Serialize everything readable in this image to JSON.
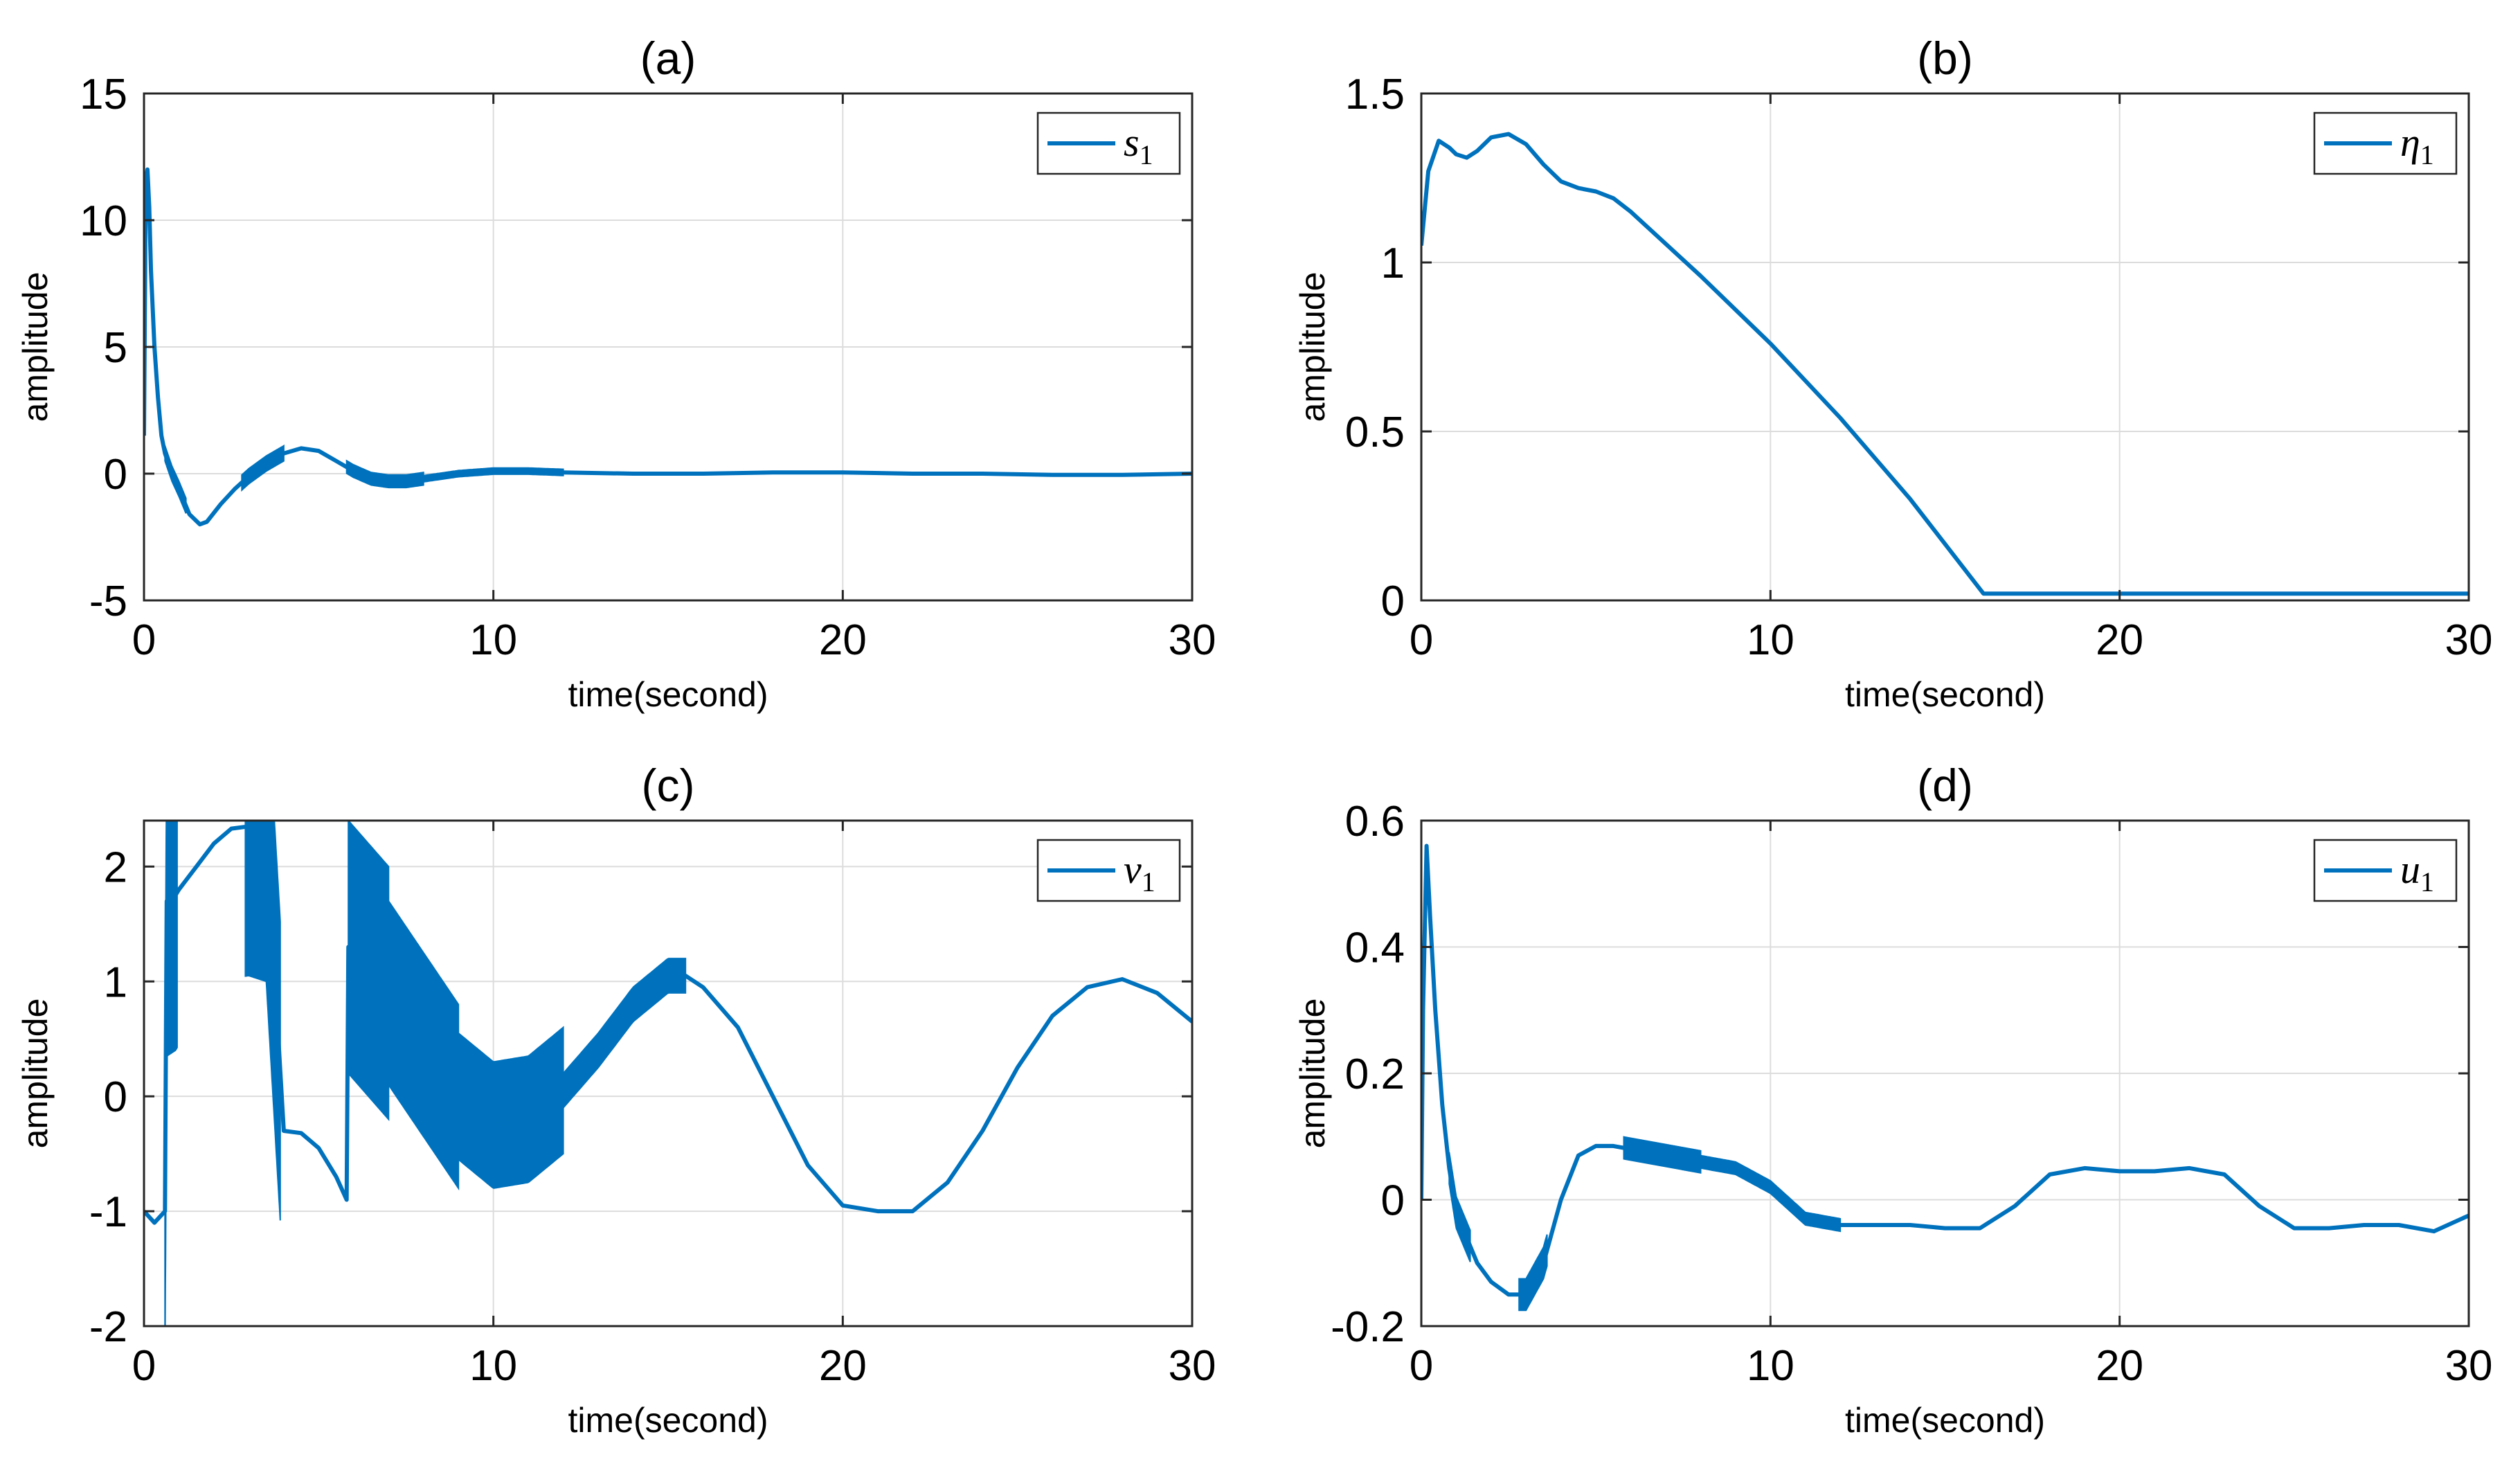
{
  "chart_data": [
    {
      "type": "line",
      "title": "(a)",
      "xlabel": "time(second)",
      "ylabel": "amplitude",
      "xlim": [
        0,
        30
      ],
      "ylim": [
        -5,
        15
      ],
      "xticks": [
        0,
        10,
        20,
        30
      ],
      "xtick_labels": [
        "0",
        "10",
        "20",
        "30"
      ],
      "yticks": [
        -5,
        0,
        5,
        10,
        15
      ],
      "ytick_labels": [
        "-5",
        "0",
        "5",
        "10",
        "15"
      ],
      "grid": true,
      "legend": {
        "label": "s",
        "subscript": "1",
        "position": "top-right"
      },
      "color": "#0072BD",
      "series": [
        {
          "name": "s1",
          "x": [
            0,
            0.05,
            0.1,
            0.15,
            0.2,
            0.3,
            0.4,
            0.5,
            0.6,
            0.8,
            1.0,
            1.3,
            1.6,
            1.8,
            2.2,
            2.6,
            3.0,
            3.5,
            4.0,
            4.5,
            5.0,
            5.5,
            6.0,
            6.5,
            7.0,
            7.5,
            8.0,
            9.0,
            10.0,
            11.0,
            12.0,
            14.0,
            16.0,
            18.0,
            20.0,
            22.0,
            24.0,
            26.0,
            28.0,
            30.0
          ],
          "y": [
            1.5,
            11.5,
            12.0,
            10.5,
            8.0,
            5.0,
            3.0,
            1.5,
            0.8,
            0.0,
            -0.6,
            -1.6,
            -2.0,
            -1.9,
            -1.2,
            -0.6,
            -0.1,
            0.4,
            0.8,
            1.0,
            0.9,
            0.5,
            0.1,
            -0.2,
            -0.3,
            -0.3,
            -0.2,
            0.0,
            0.1,
            0.1,
            0.05,
            0.0,
            0.0,
            0.05,
            0.05,
            0.0,
            0.0,
            -0.05,
            -0.05,
            0.0
          ],
          "oscillation_bands": [
            [
              0.6,
              1.2,
              0.6
            ],
            [
              2.8,
              4.0,
              0.6
            ],
            [
              5.8,
              8.0,
              0.5
            ],
            [
              8.0,
              12.0,
              0.25
            ]
          ]
        }
      ]
    },
    {
      "type": "line",
      "title": "(b)",
      "xlabel": "time(second)",
      "ylabel": "amplitude",
      "xlim": [
        0,
        30
      ],
      "ylim": [
        0,
        1.5
      ],
      "xticks": [
        0,
        10,
        20,
        30
      ],
      "xtick_labels": [
        "0",
        "10",
        "20",
        "30"
      ],
      "yticks": [
        0,
        0.5,
        1,
        1.5
      ],
      "ytick_labels": [
        "0",
        "0.5",
        "1",
        "1.5"
      ],
      "grid": true,
      "legend": {
        "label": "η",
        "subscript": "1",
        "position": "top-right"
      },
      "color": "#0072BD",
      "series": [
        {
          "name": "eta1",
          "x": [
            0,
            0.2,
            0.5,
            0.8,
            1.0,
            1.3,
            1.6,
            2.0,
            2.5,
            3.0,
            3.5,
            4.0,
            4.5,
            5.0,
            5.5,
            6.0,
            8.0,
            10.0,
            12.0,
            14.0,
            16.1,
            18.0,
            20.0,
            25.0,
            30.0
          ],
          "y": [
            1.05,
            1.27,
            1.36,
            1.34,
            1.32,
            1.31,
            1.33,
            1.37,
            1.38,
            1.35,
            1.29,
            1.24,
            1.22,
            1.21,
            1.19,
            1.15,
            0.96,
            0.76,
            0.54,
            0.3,
            0.02,
            0.02,
            0.02,
            0.02,
            0.02
          ],
          "oscillation_bands": []
        }
      ]
    },
    {
      "type": "line",
      "title": "(c)",
      "xlabel": "time(second)",
      "ylabel": "amplitude",
      "xlim": [
        0,
        30
      ],
      "ylim": [
        -2,
        2.4
      ],
      "xticks": [
        0,
        10,
        20,
        30
      ],
      "xtick_labels": [
        "0",
        "10",
        "20",
        "30"
      ],
      "yticks": [
        -2,
        -1,
        0,
        1,
        2
      ],
      "ytick_labels": [
        "-2",
        "-1",
        "0",
        "1",
        "2"
      ],
      "grid": true,
      "legend": {
        "label": "v",
        "subscript": "1",
        "position": "top-right"
      },
      "color": "#0072BD",
      "series": [
        {
          "name": "v1",
          "x": [
            0,
            0.3,
            0.6,
            0.65,
            0.9,
            1.0,
            1.5,
            2.0,
            2.5,
            3.0,
            3.5,
            4.0,
            4.5,
            5.0,
            5.5,
            5.8,
            5.85,
            7.0,
            8.0,
            9.0,
            10.0,
            11.0,
            12.0,
            13.0,
            14.0,
            15.0,
            15.5,
            16.0,
            17.0,
            18.0,
            19.0,
            20.0,
            21.0,
            22.0,
            23.0,
            24.0,
            25.0,
            26.0,
            27.0,
            28.0,
            29.0,
            30.0
          ],
          "y": [
            -1.0,
            -1.1,
            -1.0,
            1.7,
            1.75,
            1.8,
            2.0,
            2.2,
            2.33,
            2.35,
            2.3,
            -0.3,
            -0.32,
            -0.45,
            -0.7,
            -0.9,
            1.3,
            0.9,
            0.45,
            0.0,
            -0.25,
            -0.2,
            0.05,
            0.4,
            0.8,
            1.05,
            1.05,
            0.95,
            0.6,
            0.0,
            -0.6,
            -0.95,
            -1.0,
            -1.0,
            -0.75,
            -0.3,
            0.25,
            0.7,
            0.95,
            1.02,
            0.9,
            0.65
          ],
          "oscillation_bands": [
            [
              0.6,
              0.95,
              2.7
            ],
            [
              2.9,
              3.9,
              2.6
            ],
            [
              5.85,
              7.0,
              2.2
            ],
            [
              7.0,
              9.0,
              1.6
            ],
            [
              9.0,
              12.0,
              1.1
            ],
            [
              12.0,
              15.5,
              0.3
            ]
          ]
        }
      ]
    },
    {
      "type": "line",
      "title": "(d)",
      "xlabel": "time(second)",
      "ylabel": "amplitude",
      "xlim": [
        0,
        30
      ],
      "ylim": [
        -0.2,
        0.6
      ],
      "xticks": [
        0,
        10,
        20,
        30
      ],
      "xtick_labels": [
        "0",
        "10",
        "20",
        "30"
      ],
      "yticks": [
        -0.2,
        0,
        0.2,
        0.4,
        0.6
      ],
      "ytick_labels": [
        "-0.2",
        "0",
        "0.2",
        "0.4",
        "0.6"
      ],
      "grid": true,
      "legend": {
        "label": "u",
        "subscript": "1",
        "position": "top-right"
      },
      "color": "#0072BD",
      "series": [
        {
          "name": "u1",
          "x": [
            0,
            0.05,
            0.15,
            0.25,
            0.4,
            0.6,
            0.8,
            1.0,
            1.3,
            1.6,
            2.0,
            2.5,
            3.0,
            3.5,
            4.0,
            4.5,
            5.0,
            5.5,
            6.0,
            7.0,
            8.0,
            9.0,
            10.0,
            11.0,
            12.0,
            13.0,
            14.0,
            15.0,
            16.0,
            17.0,
            18.0,
            19.0,
            20.0,
            21.0,
            22.0,
            23.0,
            24.0,
            25.0,
            26.0,
            27.0,
            28.0,
            29.0,
            30.0
          ],
          "y": [
            0.0,
            0.3,
            0.56,
            0.45,
            0.3,
            0.15,
            0.05,
            -0.02,
            -0.06,
            -0.1,
            -0.13,
            -0.15,
            -0.15,
            -0.1,
            0.0,
            0.07,
            0.085,
            0.085,
            0.08,
            0.07,
            0.06,
            0.05,
            0.02,
            -0.03,
            -0.04,
            -0.04,
            -0.04,
            -0.045,
            -0.045,
            -0.01,
            0.04,
            0.05,
            0.045,
            0.045,
            0.05,
            0.04,
            -0.01,
            -0.045,
            -0.045,
            -0.04,
            -0.04,
            -0.05,
            -0.025
          ],
          "oscillation_bands": [
            [
              0.8,
              1.4,
              0.05
            ],
            [
              2.8,
              3.6,
              0.05
            ],
            [
              5.8,
              8.0,
              0.035
            ],
            [
              8.0,
              12.0,
              0.02
            ]
          ]
        }
      ]
    }
  ]
}
